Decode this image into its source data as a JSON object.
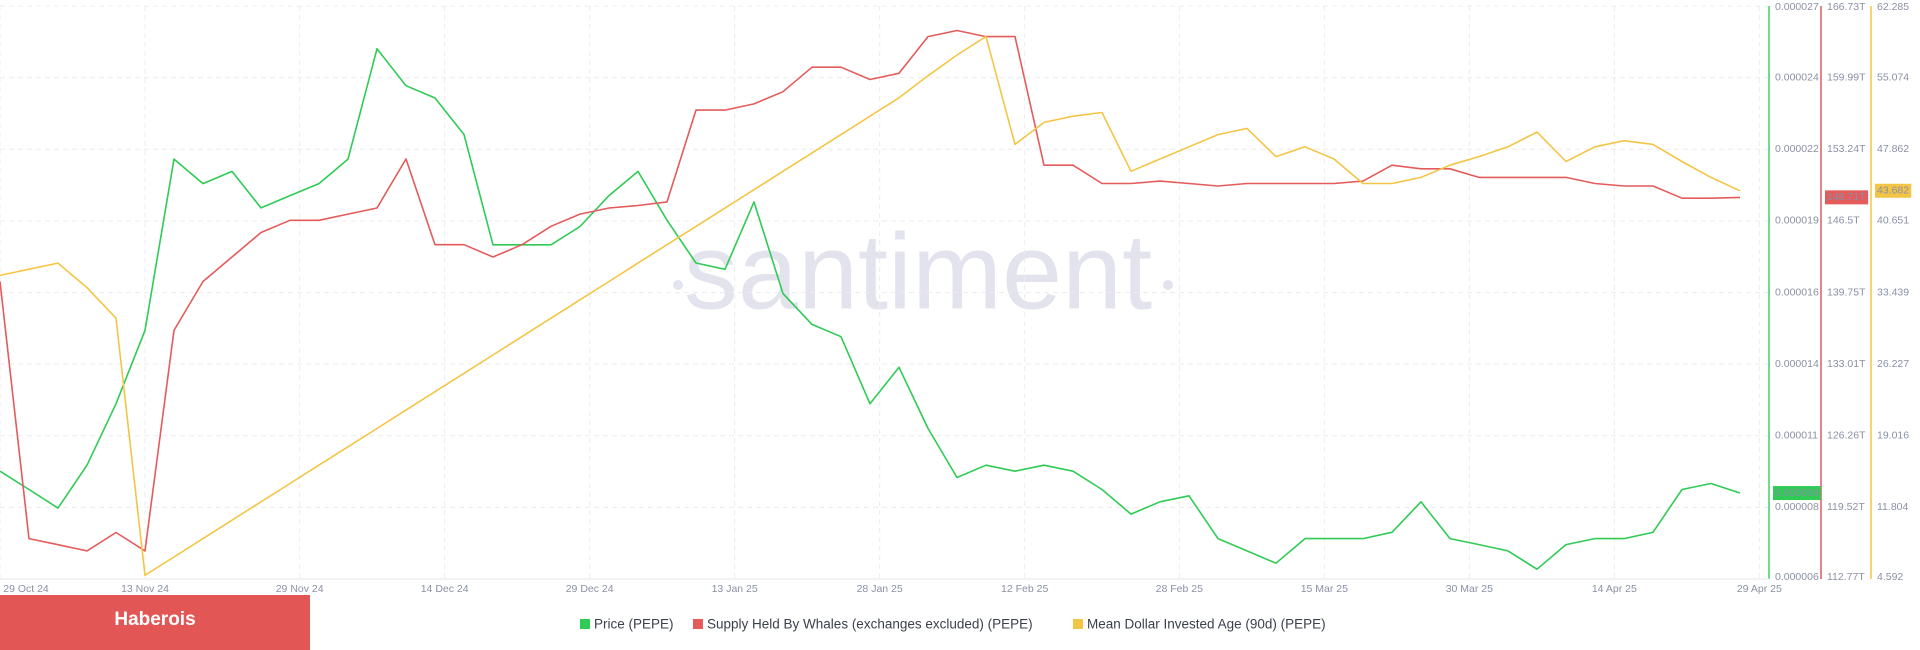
{
  "chart_data": {
    "type": "line",
    "x": [
      "2024-10-29",
      "2024-11-01",
      "2024-11-04",
      "2024-11-07",
      "2024-11-10",
      "2024-11-13",
      "2024-11-16",
      "2024-11-19",
      "2024-11-22",
      "2024-11-25",
      "2024-11-28",
      "2024-12-01",
      "2024-12-04",
      "2024-12-07",
      "2024-12-10",
      "2024-12-13",
      "2024-12-16",
      "2024-12-19",
      "2024-12-22",
      "2024-12-25",
      "2024-12-28",
      "2024-12-31",
      "2025-01-03",
      "2025-01-06",
      "2025-01-09",
      "2025-01-12",
      "2025-01-15",
      "2025-01-18",
      "2025-01-21",
      "2025-01-24",
      "2025-01-27",
      "2025-01-30",
      "2025-02-02",
      "2025-02-05",
      "2025-02-08",
      "2025-02-11",
      "2025-02-14",
      "2025-02-17",
      "2025-02-20",
      "2025-02-23",
      "2025-02-26",
      "2025-03-01",
      "2025-03-04",
      "2025-03-07",
      "2025-03-10",
      "2025-03-13",
      "2025-03-16",
      "2025-03-19",
      "2025-03-22",
      "2025-03-25",
      "2025-03-28",
      "2025-03-31",
      "2025-04-03",
      "2025-04-06",
      "2025-04-09",
      "2025-04-12",
      "2025-04-15",
      "2025-04-18",
      "2025-04-21",
      "2025-04-24",
      "2025-04-27"
    ],
    "xlim": [
      "2024-10-29",
      "2025-04-30"
    ],
    "xticks": [
      {
        "value": "2024-10-29",
        "label": "29 Oct 24"
      },
      {
        "value": "2024-11-13",
        "label": "13 Nov 24"
      },
      {
        "value": "2024-11-29",
        "label": "29 Nov 24"
      },
      {
        "value": "2024-12-14",
        "label": "14 Dec 24"
      },
      {
        "value": "2024-12-29",
        "label": "29 Dec 24"
      },
      {
        "value": "2025-01-13",
        "label": "13 Jan 25"
      },
      {
        "value": "2025-01-28",
        "label": "28 Jan 25"
      },
      {
        "value": "2025-02-12",
        "label": "12 Feb 25"
      },
      {
        "value": "2025-02-28",
        "label": "28 Feb 25"
      },
      {
        "value": "2025-03-15",
        "label": "15 Mar 25"
      },
      {
        "value": "2025-03-30",
        "label": "30 Mar 25"
      },
      {
        "value": "2025-04-14",
        "label": "14 Apr 25"
      },
      {
        "value": "2025-04-29",
        "label": "29 Apr 25"
      }
    ],
    "series": [
      {
        "name": "Price (PEPE)",
        "color": "#2fcb55",
        "axis": "y",
        "values": [
          9.8e-06,
          9.13e-06,
          8.45e-06,
          1.002e-05,
          1.227e-05,
          1.496e-05,
          2.124e-05,
          2.034e-05,
          2.079e-05,
          1.945e-05,
          1.99e-05,
          2.034e-05,
          2.124e-05,
          2.528e-05,
          2.393e-05,
          2.348e-05,
          2.214e-05,
          1.81e-05,
          1.81e-05,
          1.81e-05,
          1.877e-05,
          1.99e-05,
          2.079e-05,
          1.9e-05,
          1.743e-05,
          1.72e-05,
          1.967e-05,
          1.631e-05,
          1.518e-05,
          1.473e-05,
          1.227e-05,
          1.361e-05,
          1.137e-05,
          9.57e-06,
          1.002e-05,
          9.8e-06,
          1.002e-05,
          9.8e-06,
          9.13e-06,
          8.23e-06,
          8.68e-06,
          8.9e-06,
          7.33e-06,
          6.88e-06,
          6.43e-06,
          7.33e-06,
          7.33e-06,
          7.33e-06,
          7.56e-06,
          8.68e-06,
          7.33e-06,
          7.11e-06,
          6.88e-06,
          6.21e-06,
          7.11e-06,
          7.33e-06,
          7.33e-06,
          7.56e-06,
          9.13e-06,
          9.35e-06,
          9e-06
        ]
      },
      {
        "name": "Supply Held By Whales (exchanges excluded) (PEPE)",
        "color": "#e45b5b",
        "axis": "y2",
        "values": [
          140.79,
          116.57,
          116.0,
          115.42,
          117.15,
          115.42,
          136.18,
          140.79,
          143.09,
          145.4,
          146.55,
          146.55,
          147.13,
          147.71,
          152.32,
          144.25,
          144.25,
          143.09,
          144.25,
          145.98,
          147.13,
          147.71,
          147.94,
          148.28,
          156.93,
          156.93,
          157.51,
          158.66,
          160.97,
          160.97,
          159.81,
          160.39,
          163.85,
          164.42,
          163.85,
          163.85,
          151.74,
          151.74,
          150.01,
          150.01,
          150.24,
          150.01,
          149.78,
          150.01,
          150.01,
          150.01,
          150.01,
          150.24,
          151.74,
          151.4,
          151.4,
          150.59,
          150.59,
          150.59,
          150.59,
          150.01,
          149.78,
          149.78,
          148.63,
          148.63,
          148.71
        ],
        "value_labels": [
          null,
          null,
          null,
          null,
          null,
          null,
          null,
          null,
          null,
          null,
          null,
          null,
          null,
          null,
          null,
          null,
          null,
          null,
          null,
          null,
          null,
          null,
          null,
          null,
          null,
          null,
          null,
          null,
          null,
          null,
          null,
          null,
          null,
          null,
          null,
          null,
          null,
          null,
          null,
          null,
          null,
          null,
          null,
          null,
          null,
          null,
          null,
          null,
          null,
          null,
          null,
          null,
          null,
          null,
          null,
          null,
          null,
          null,
          null,
          null,
          "148.71T"
        ]
      },
      {
        "name": "Mean Dollar Invested Age (90d) (PEPE)",
        "color": "#f4c545",
        "axis": "y3",
        "values": [
          35.16,
          35.78,
          36.4,
          33.93,
          30.85,
          4.96,
          6.81,
          8.66,
          10.51,
          12.36,
          14.21,
          16.06,
          17.9,
          19.75,
          21.6,
          23.45,
          25.3,
          27.15,
          29.0,
          30.85,
          32.7,
          34.55,
          36.4,
          38.25,
          40.09,
          41.94,
          43.79,
          45.64,
          47.49,
          49.34,
          51.19,
          53.04,
          55.26,
          57.35,
          59.2,
          48.35,
          50.57,
          51.19,
          51.56,
          45.64,
          46.88,
          48.11,
          49.34,
          49.96,
          47.12,
          48.11,
          46.88,
          44.41,
          44.41,
          45.03,
          46.26,
          47.12,
          48.11,
          49.59,
          46.63,
          48.11,
          48.72,
          48.35,
          46.63,
          45.03,
          43.682
        ]
      }
    ],
    "ylim": [
      5.85e-06,
      2.685e-05
    ],
    "yticks": [
      {
        "value": 5.85e-06,
        "label": "0.000006"
      },
      {
        "value": 8.475e-06,
        "label": "0.000008"
      },
      {
        "value": 1.11e-05,
        "label": "0.000011"
      },
      {
        "value": 1.3725e-05,
        "label": "0.000014"
      },
      {
        "value": 1.635e-05,
        "label": "0.000016"
      },
      {
        "value": 1.8975e-05,
        "label": "0.000019"
      },
      {
        "value": 2.16e-05,
        "label": "0.000022"
      },
      {
        "value": 2.4225e-05,
        "label": "0.000024"
      },
      {
        "value": 2.685e-05,
        "label": "0.000027"
      }
    ],
    "y2lim": [
      112.77,
      166.73
    ],
    "y2ticks": [
      {
        "value": 112.77,
        "label": "112.77T"
      },
      {
        "value": 119.52,
        "label": "119.52T"
      },
      {
        "value": 126.26,
        "label": "126.26T"
      },
      {
        "value": 133.01,
        "label": "133.01T"
      },
      {
        "value": 139.75,
        "label": "139.75T"
      },
      {
        "value": 146.5,
        "label": "146.5T"
      },
      {
        "value": 153.24,
        "label": "153.24T"
      },
      {
        "value": 159.99,
        "label": "159.99T"
      },
      {
        "value": 166.73,
        "label": "166.73T"
      }
    ],
    "y3lim": [
      4.592,
      62.285
    ],
    "y3ticks": [
      4.592,
      11.804,
      19.016,
      26.227,
      33.439,
      40.651,
      47.862,
      55.074,
      62.285
    ],
    "grid": true
  },
  "watermark": "santiment",
  "badge": "Haberois"
}
